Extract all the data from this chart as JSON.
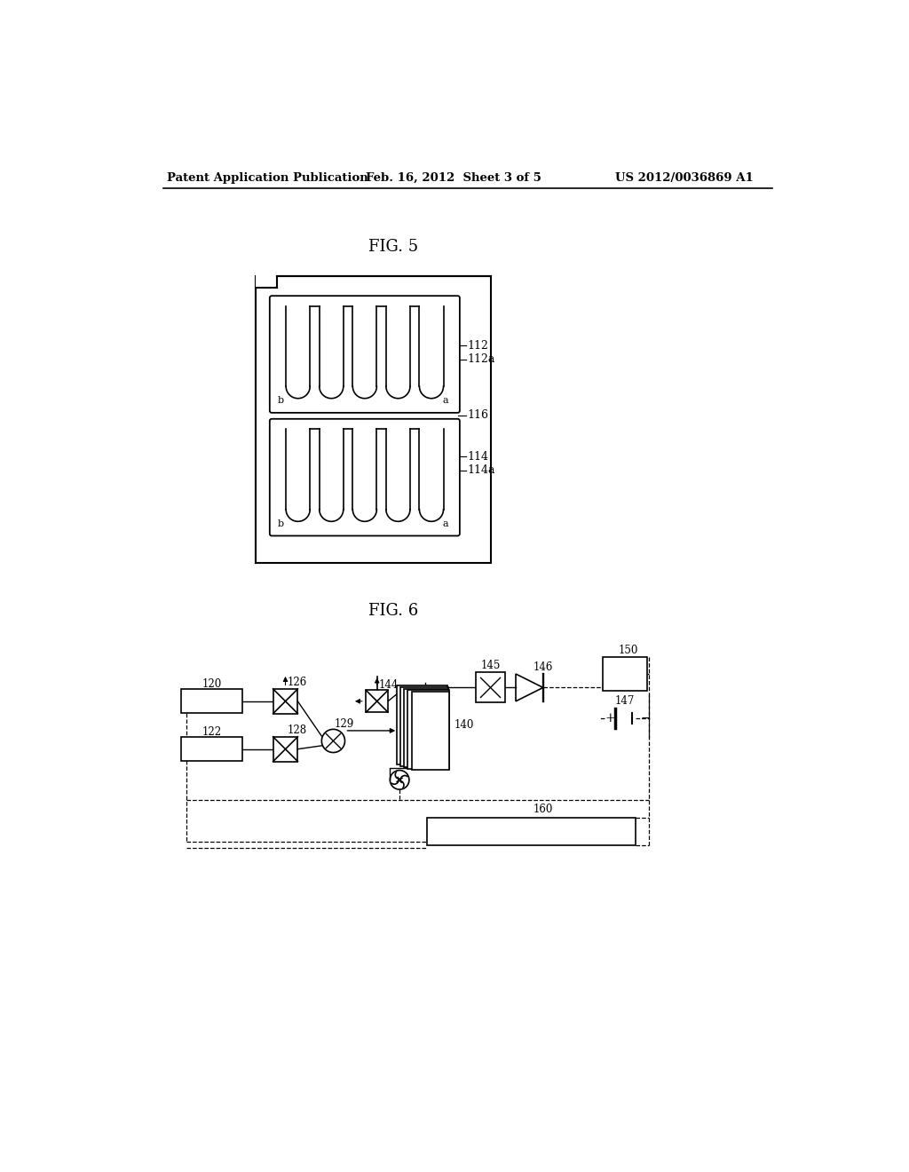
{
  "bg_color": "#ffffff",
  "header_left": "Patent Application Publication",
  "header_mid": "Feb. 16, 2012  Sheet 3 of 5",
  "header_right": "US 2012/0036869 A1",
  "fig5_title": "FIG. 5",
  "fig6_title": "FIG. 6"
}
